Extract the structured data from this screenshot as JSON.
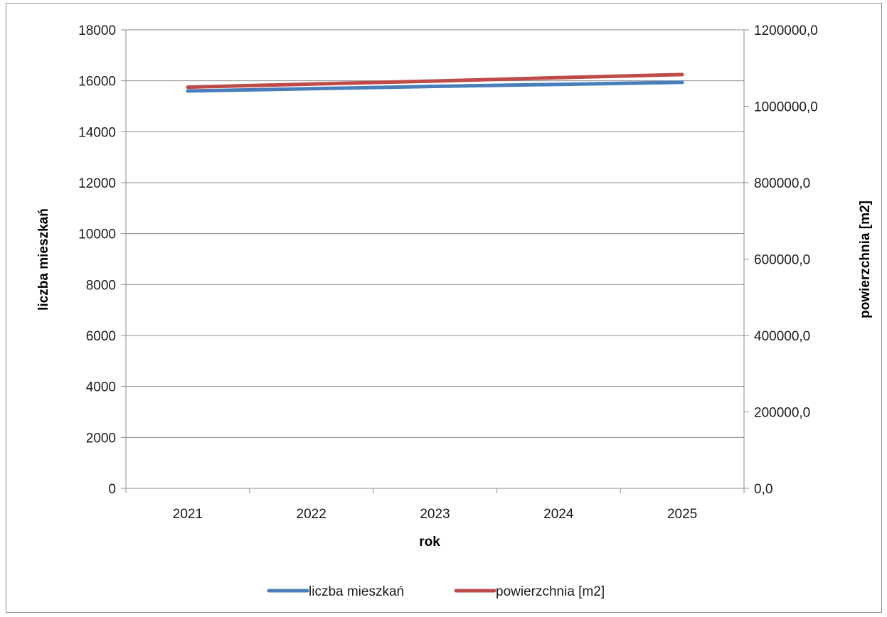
{
  "chart_data": {
    "type": "line",
    "categories": [
      "2021",
      "2022",
      "2023",
      "2024",
      "2025"
    ],
    "series": [
      {
        "name": "liczba mieszkań",
        "axis": "left",
        "color": "#4a7ebb",
        "values": [
          15600,
          15690,
          15780,
          15860,
          15940
        ]
      },
      {
        "name": "powierzchnia [m2]",
        "axis": "right",
        "color": "#be4b48",
        "values": [
          1050000,
          1058000,
          1066000,
          1075000,
          1083000
        ]
      }
    ],
    "xlabel": "rok",
    "ylabel_left": "liczba mieszkań",
    "ylabel_right": "powierzchnia [m2]",
    "ylim_left": [
      0,
      18000
    ],
    "ylim_right": [
      0,
      1200000
    ],
    "yticks_left": [
      "0",
      "2000",
      "4000",
      "6000",
      "8000",
      "10000",
      "12000",
      "14000",
      "16000",
      "18000"
    ],
    "yticks_right": [
      "0,0",
      "200000,0",
      "400000,0",
      "600000,0",
      "800000,0",
      "1000000,0",
      "1200000,0"
    ],
    "grid": "horizontal",
    "legend_position": "bottom"
  }
}
